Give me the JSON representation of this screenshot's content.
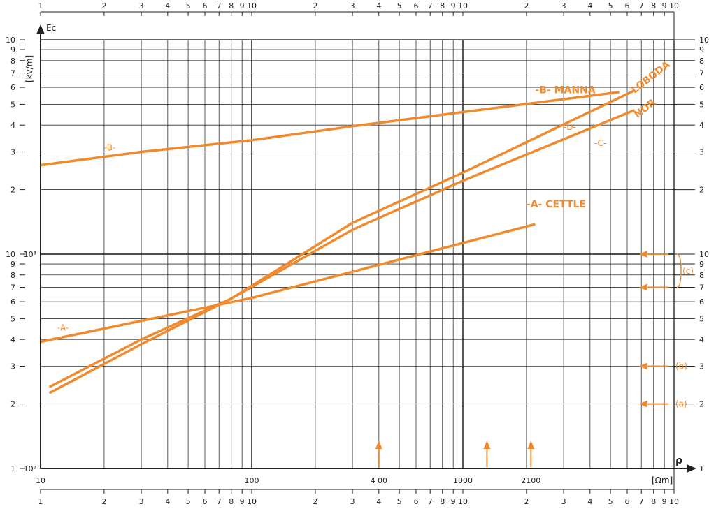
{
  "chart_data": {
    "type": "line",
    "x_scale": "log",
    "y_scale": "log",
    "xlim": [
      10,
      10000
    ],
    "ylim": [
      100,
      10000
    ],
    "xlabel": "ρ",
    "xunit": "[Ωm]",
    "ylabel": "Ec",
    "yunit": "[kv/m]",
    "grid": true,
    "x_tick_labels_bottom": [
      "10",
      "100",
      "4 00",
      "1000",
      "2100"
    ],
    "x_tick_values_bottom": [
      10,
      100,
      400,
      1000,
      2100
    ],
    "y_tick_labels_left": [
      "10³",
      "10²"
    ],
    "y_tick_values_left": [
      1000,
      100
    ],
    "decade_minor_labels": [
      "1",
      "2",
      "3",
      "4",
      "5",
      "6",
      "7",
      "8",
      "9",
      "10"
    ],
    "series": [
      {
        "name": "-A- CETTLE",
        "label": "-A-",
        "x": [
          10,
          100,
          2200
        ],
        "y": [
          390,
          625,
          1380
        ]
      },
      {
        "name": "-B- MANNA",
        "label": "-B-",
        "x": [
          10,
          30,
          100,
          300,
          1000,
          5500
        ],
        "y": [
          2600,
          3000,
          3400,
          3950,
          4600,
          5700
        ]
      },
      {
        "name": "LOBODA",
        "label": "-D-",
        "x": [
          11,
          30,
          80,
          300,
          1000,
          6500
        ],
        "y": [
          225,
          380,
          620,
          1400,
          2400,
          5800
        ]
      },
      {
        "name": "NOR",
        "label": "-C-",
        "x": [
          11,
          30,
          80,
          300,
          1000,
          6500
        ],
        "y": [
          240,
          400,
          620,
          1300,
          2200,
          4700
        ]
      }
    ],
    "annotations": {
      "right_markers": [
        {
          "label": "(c)",
          "y": [
            700,
            1000
          ]
        },
        {
          "label": "(b)",
          "y": [
            300
          ]
        },
        {
          "label": "(a)",
          "y": [
            200
          ]
        }
      ],
      "bottom_arrows_x": [
        400,
        1300,
        2100
      ]
    },
    "colors": {
      "series": "#ef8a2e",
      "axis": "#222222",
      "grid": "#333333"
    }
  }
}
